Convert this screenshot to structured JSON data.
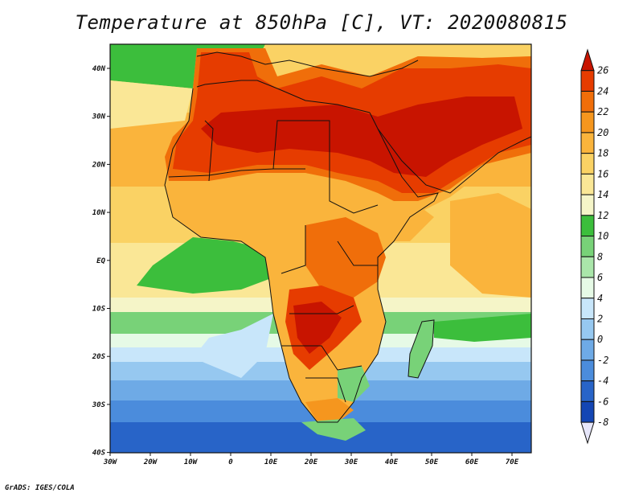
{
  "title": "Temperature at 850hPa [C], VT: 2020080815",
  "credit": "GrADS: IGES/COLA",
  "map": {
    "lon_ticks": [
      "30W",
      "20W",
      "10W",
      "0",
      "10E",
      "20E",
      "30E",
      "40E",
      "50E",
      "60E",
      "70E"
    ],
    "lat_ticks": [
      "40N",
      "30N",
      "20N",
      "10N",
      "EQ",
      "10S",
      "20S",
      "30S",
      "40S"
    ],
    "lon_range": [
      -30,
      75
    ],
    "lat_range": [
      -40,
      45
    ]
  },
  "colorbar": {
    "labels": [
      "26",
      "24",
      "22",
      "20",
      "18",
      "16",
      "14",
      "12",
      "10",
      "8",
      "6",
      "4",
      "2",
      "0",
      "-2",
      "-4",
      "-6",
      "-8"
    ],
    "colors": [
      "#c81400",
      "#e63c00",
      "#f06e0a",
      "#f5961e",
      "#fab43c",
      "#fad264",
      "#fae796",
      "#f5f5c8",
      "#3cbe3c",
      "#78d278",
      "#aae6aa",
      "#e6fae6",
      "#c8e6fa",
      "#96c8f0",
      "#6eaae6",
      "#4b8cdc",
      "#2864c8",
      "#1446b4",
      "#0a1e78",
      "#e6e6fa"
    ],
    "units": "C"
  }
}
